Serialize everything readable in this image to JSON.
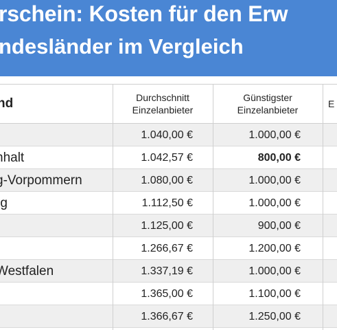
{
  "title": "rschein: Kosten für den Erw",
  "subtitle": "ndesländer im Vergleich",
  "table": {
    "headers": {
      "land": "nd",
      "avg": [
        "Durchschnitt",
        "Einzelanbieter"
      ],
      "min": [
        "Günstigster",
        "Einzelanbieter"
      ],
      "next": "E"
    },
    "rows": [
      {
        "land": "",
        "avg": "1.040,00 €",
        "min": "1.000,00 €",
        "min_bold": false
      },
      {
        "land": "nhalt",
        "avg": "1.042,57 €",
        "min": "800,00 €",
        "min_bold": true
      },
      {
        "land": "g-Vorpommern",
        "avg": "1.080,00 €",
        "min": "1.000,00 €",
        "min_bold": false
      },
      {
        "land": "rg",
        "avg": "1.112,50 €",
        "min": "1.000,00 €",
        "min_bold": false
      },
      {
        "land": "",
        "avg": "1.125,00 €",
        "min": "900,00 €",
        "min_bold": false
      },
      {
        "land": "",
        "avg": "1.266,67 €",
        "min": "1.200,00 €",
        "min_bold": false
      },
      {
        "land": "Westfalen",
        "avg": "1.337,19 €",
        "min": "1.000,00 €",
        "min_bold": false
      },
      {
        "land": "",
        "avg": "1.365,00 €",
        "min": "1.100,00 €",
        "min_bold": false
      },
      {
        "land": "",
        "avg": "1.366,67 €",
        "min": "1.250,00 €",
        "min_bold": false
      }
    ]
  },
  "colors": {
    "banner": "#4a86d4",
    "row_shade": "#efefef",
    "grid": "#cfcfcf"
  }
}
